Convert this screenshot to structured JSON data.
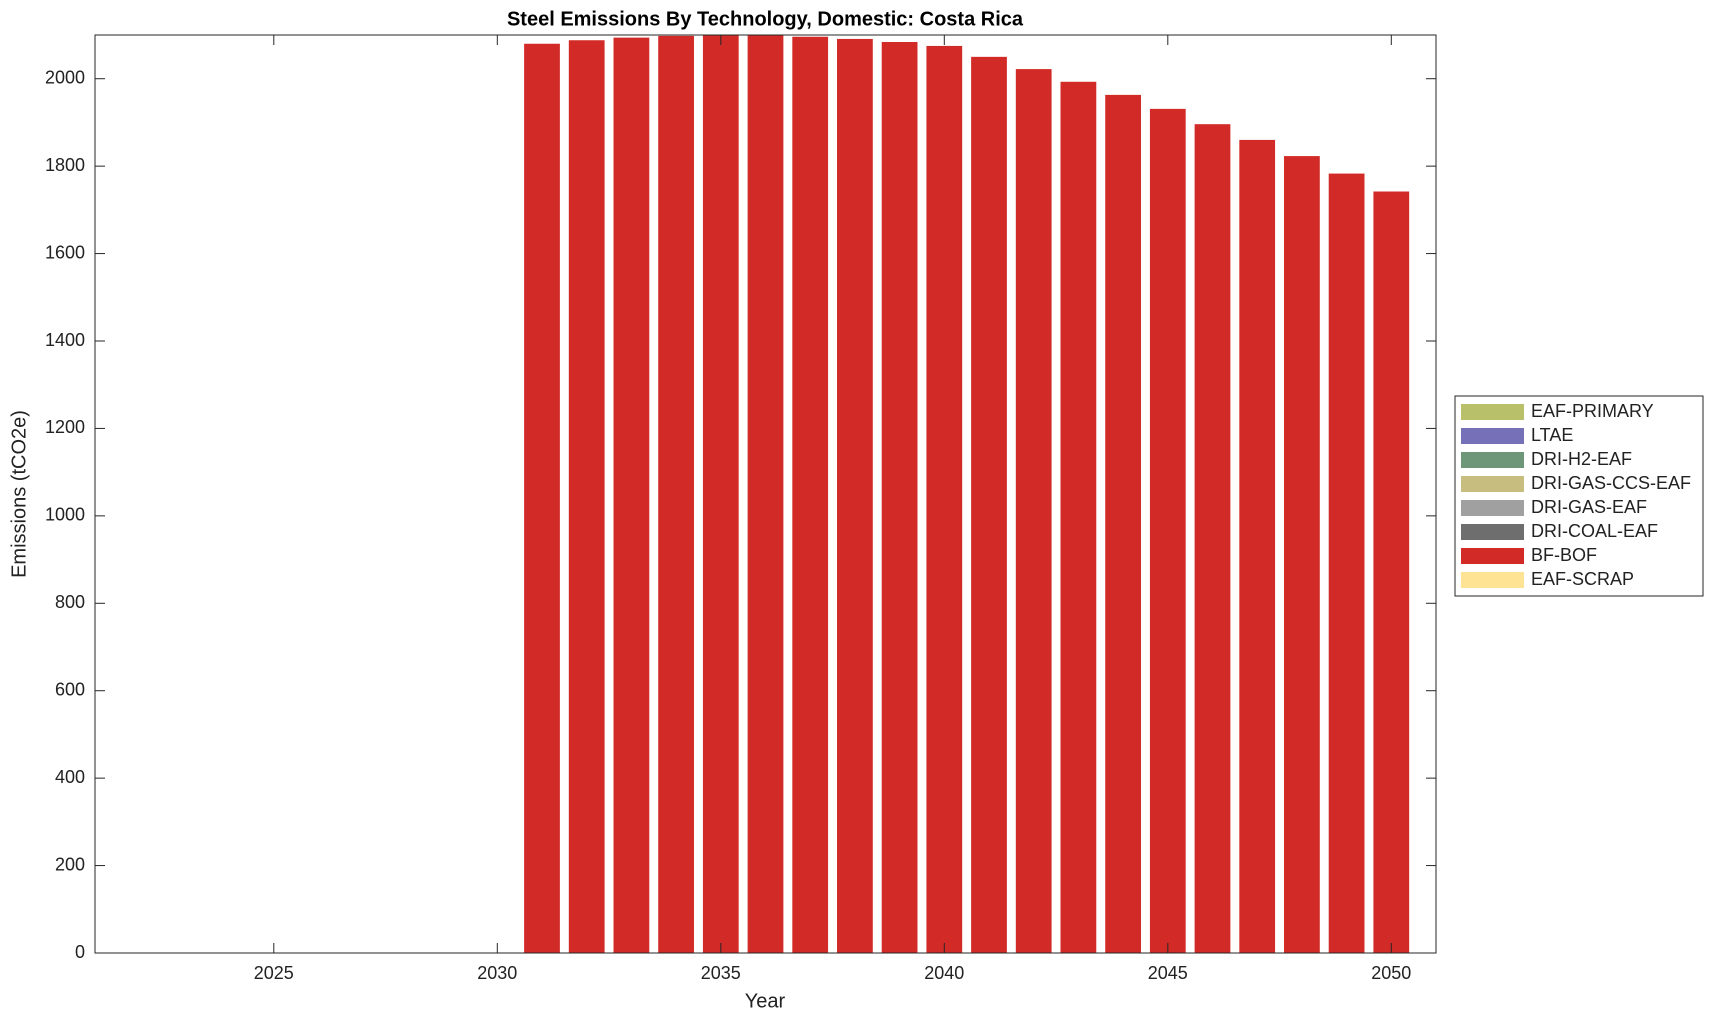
{
  "chart_data": {
    "type": "bar",
    "stacked": true,
    "title": "Steel Emissions By Technology, Domestic: Costa Rica",
    "x_label": "Year",
    "y_label": "Emissions (tCO2e)",
    "x": [
      2031,
      2032,
      2033,
      2034,
      2035,
      2036,
      2037,
      2038,
      2039,
      2040,
      2041,
      2042,
      2043,
      2044,
      2045,
      2046,
      2047,
      2048,
      2049,
      2050
    ],
    "series": [
      {
        "name": "EAF-PRIMARY",
        "color": "#b8c16a",
        "values": [
          0,
          0,
          0,
          0,
          0,
          0,
          0,
          0,
          0,
          0,
          0,
          0,
          0,
          0,
          0,
          0,
          0,
          0,
          0,
          0
        ]
      },
      {
        "name": "LTAE",
        "color": "#7570b8",
        "values": [
          0,
          0,
          0,
          0,
          0,
          0,
          0,
          0,
          0,
          0,
          0,
          0,
          0,
          0,
          0,
          0,
          0,
          0,
          0,
          0
        ]
      },
      {
        "name": "DRI-H2-EAF",
        "color": "#6e9679",
        "values": [
          0,
          0,
          0,
          0,
          0,
          0,
          0,
          0,
          0,
          0,
          0,
          0,
          0,
          0,
          0,
          0,
          0,
          0,
          0,
          0
        ]
      },
      {
        "name": "DRI-GAS-CCS-EAF",
        "color": "#c6bd7e",
        "values": [
          0,
          0,
          0,
          0,
          0,
          0,
          0,
          0,
          0,
          0,
          0,
          0,
          0,
          0,
          0,
          0,
          0,
          0,
          0,
          0
        ]
      },
      {
        "name": "DRI-GAS-EAF",
        "color": "#a0a0a0",
        "values": [
          0,
          0,
          0,
          0,
          0,
          0,
          0,
          0,
          0,
          0,
          0,
          0,
          0,
          0,
          0,
          0,
          0,
          0,
          0,
          0
        ]
      },
      {
        "name": "DRI-COAL-EAF",
        "color": "#6e6e6e",
        "values": [
          0,
          0,
          0,
          0,
          0,
          0,
          0,
          0,
          0,
          0,
          0,
          0,
          0,
          0,
          0,
          0,
          0,
          0,
          0,
          0
        ]
      },
      {
        "name": "BF-BOF",
        "color": "#d22a26",
        "values": [
          2080,
          2088,
          2094,
          2098,
          2100,
          2099,
          2096,
          2091,
          2084,
          2075,
          2050,
          2022,
          1993,
          1963,
          1931,
          1896,
          1860,
          1823,
          1783,
          1742
        ]
      },
      {
        "name": "EAF-SCRAP",
        "color": "#fde393",
        "values": [
          0,
          0,
          0,
          0,
          0,
          0,
          0,
          0,
          0,
          0,
          0,
          0,
          0,
          0,
          0,
          0,
          0,
          0,
          0,
          0
        ]
      }
    ],
    "xlim": [
      2021,
      2051
    ],
    "xticks": [
      2025,
      2030,
      2035,
      2040,
      2045,
      2050
    ],
    "ylim": [
      0,
      2100
    ],
    "yticks": [
      0,
      200,
      400,
      600,
      800,
      1000,
      1200,
      1400,
      1600,
      1800,
      2000
    ],
    "legend": "right",
    "grid": false
  }
}
